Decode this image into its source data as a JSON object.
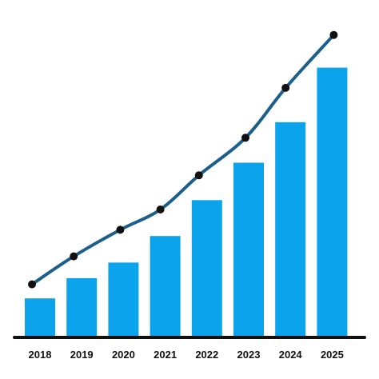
{
  "chart_data": {
    "type": "bar",
    "categories": [
      "2018",
      "2019",
      "2020",
      "2021",
      "2022",
      "2023",
      "2024",
      "2025"
    ],
    "series": [
      {
        "type": "bar",
        "values": [
          12,
          18.5,
          23.5,
          32,
          43.5,
          55.5,
          68.5,
          86
        ]
      },
      {
        "type": "line",
        "values": [
          16.5,
          25.5,
          34,
          40.5,
          51.5,
          63.5,
          79.5,
          96.5
        ]
      }
    ],
    "ylim": [
      0,
      100
    ],
    "grid": false,
    "legend": "none",
    "colors": {
      "bars": "#0aa3ec",
      "line": "#1b5f8a",
      "markers": "#111111",
      "baseline": "#111111"
    }
  }
}
